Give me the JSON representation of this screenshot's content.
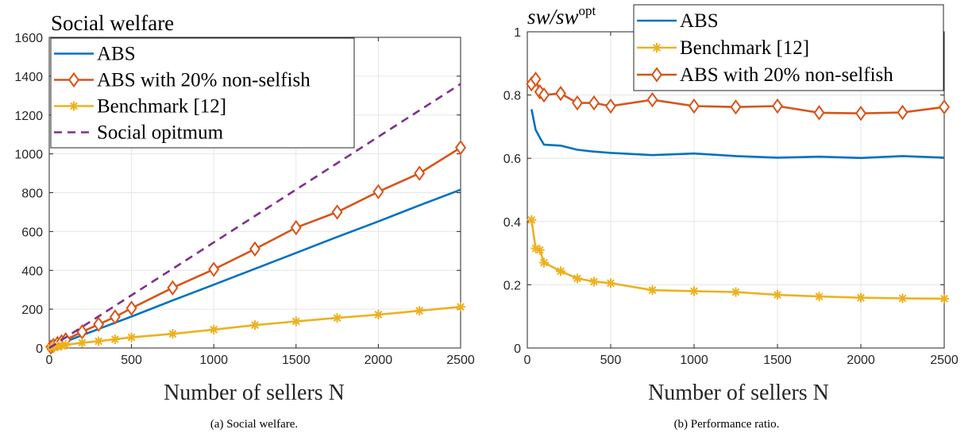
{
  "colors": {
    "abs": "#0072BD",
    "nonselfish": "#D95319",
    "benchmark": "#EDB120",
    "optimum": "#7E2F8E"
  },
  "chart_data": [
    {
      "type": "line",
      "title": "Social welfare",
      "xlabel": "Number of sellers N",
      "xlim": [
        0,
        2500
      ],
      "ylim": [
        0,
        1600
      ],
      "xticks": [
        0,
        500,
        1000,
        1500,
        2000,
        2500
      ],
      "yticks": [
        0,
        200,
        400,
        600,
        800,
        1000,
        1200,
        1400,
        1600
      ],
      "grid": true,
      "legend_position": "top-left",
      "caption": "(a) Social welfare.",
      "series": [
        {
          "name": "ABS",
          "color": "#0072BD",
          "marker": "none",
          "dash": "solid",
          "x": [
            10,
            25,
            50,
            75,
            100,
            200,
            300,
            400,
            500,
            750,
            1000,
            1250,
            1500,
            1750,
            2000,
            2250,
            2500
          ],
          "y": [
            4,
            10,
            18,
            26,
            33,
            66,
            98,
            130,
            162,
            245,
            326,
            408,
            490,
            572,
            652,
            735,
            815
          ]
        },
        {
          "name": "ABS with 20% non-selfish",
          "color": "#D95319",
          "marker": "diamond",
          "dash": "solid",
          "x": [
            10,
            25,
            50,
            75,
            100,
            200,
            300,
            400,
            500,
            750,
            1000,
            1250,
            1500,
            1750,
            2000,
            2250,
            2500
          ],
          "y": [
            5,
            13,
            23,
            32,
            42,
            83,
            122,
            160,
            205,
            310,
            405,
            510,
            620,
            700,
            805,
            900,
            1032
          ]
        },
        {
          "name": "Benchmark [12]",
          "color": "#EDB120",
          "marker": "asterisk",
          "dash": "solid",
          "x": [
            10,
            25,
            50,
            75,
            100,
            200,
            300,
            400,
            500,
            750,
            1000,
            1250,
            1500,
            1750,
            2000,
            2250,
            2500
          ],
          "y": [
            2,
            5,
            8,
            12,
            16,
            27,
            35,
            45,
            55,
            73,
            95,
            118,
            137,
            155,
            172,
            192,
            212
          ]
        },
        {
          "name": "Social opitmum",
          "color": "#7E2F8E",
          "marker": "none",
          "dash": "dashed",
          "x": [
            0,
            2500
          ],
          "y": [
            0,
            1360
          ]
        }
      ]
    },
    {
      "type": "line",
      "title_main": "sw/sw",
      "title_sup": "opt",
      "xlabel": "Number of sellers N",
      "xlim": [
        0,
        2500
      ],
      "ylim": [
        0,
        1
      ],
      "xticks": [
        0,
        500,
        1000,
        1500,
        2000,
        2500
      ],
      "yticks": [
        0,
        0.2,
        0.4,
        0.6,
        0.8,
        1
      ],
      "grid": true,
      "legend_position": "top-right",
      "caption": "(b) Performance ratio.",
      "series": [
        {
          "name": "ABS",
          "color": "#0072BD",
          "marker": "none",
          "dash": "solid",
          "x": [
            25,
            50,
            75,
            100,
            200,
            300,
            400,
            500,
            750,
            1000,
            1250,
            1500,
            1750,
            2000,
            2250,
            2500
          ],
          "y": [
            0.755,
            0.69,
            0.665,
            0.643,
            0.64,
            0.627,
            0.621,
            0.617,
            0.61,
            0.615,
            0.607,
            0.602,
            0.605,
            0.601,
            0.607,
            0.602
          ]
        },
        {
          "name": "Benchmark [12]",
          "color": "#EDB120",
          "marker": "asterisk",
          "dash": "solid",
          "x": [
            25,
            50,
            75,
            100,
            200,
            300,
            400,
            500,
            750,
            1000,
            1250,
            1500,
            1750,
            2000,
            2250,
            2500
          ],
          "y": [
            0.405,
            0.315,
            0.31,
            0.27,
            0.243,
            0.22,
            0.21,
            0.205,
            0.183,
            0.18,
            0.177,
            0.168,
            0.163,
            0.159,
            0.157,
            0.156
          ]
        },
        {
          "name": "ABS with 20% non-selfish",
          "color": "#D95319",
          "marker": "diamond",
          "dash": "solid",
          "x": [
            25,
            50,
            75,
            100,
            200,
            300,
            400,
            500,
            750,
            1000,
            1250,
            1500,
            1750,
            2000,
            2250,
            2500
          ],
          "y": [
            0.835,
            0.85,
            0.81,
            0.8,
            0.805,
            0.775,
            0.775,
            0.765,
            0.785,
            0.765,
            0.762,
            0.765,
            0.744,
            0.742,
            0.745,
            0.762
          ]
        }
      ]
    }
  ]
}
